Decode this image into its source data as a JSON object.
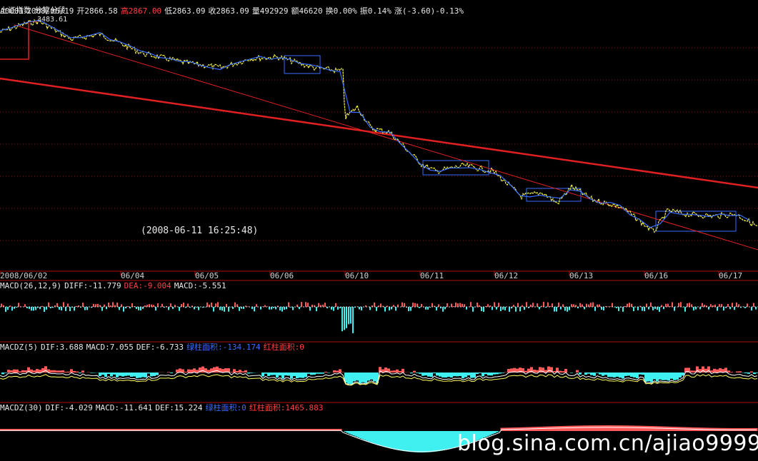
{
  "header": {
    "code": "上证指数",
    "symbol": "A0001",
    "date": "2008/06/19",
    "scale_note": "分笔分段",
    "open": "开2866.58",
    "high": "高2867.00",
    "low": "低2863.09",
    "close": "收2863.09",
    "volume": "量492929",
    "amount": "额46620",
    "turnover": "换0.00%",
    "amplitude": "振0.14%",
    "change": "涨(-3.60)-0.13%"
  },
  "main_chart": {
    "peak_label": "3483.61",
    "timestamp": "(2008-06-11 16:25:48)",
    "time_labels": [
      "2008/06/02",
      "06/04",
      "06/05",
      "06/06",
      "06/10",
      "06/11",
      "06/12",
      "06/13",
      "06/16",
      "06/17"
    ]
  },
  "macd": {
    "name": "MACD(26,12,9)",
    "diff": "DIFF:-11.779",
    "dea": "DEA:-9.004",
    "macd": "MACD:-5.551"
  },
  "macdz5": {
    "name": "MACDZ(5)",
    "dif": "DIF:3.688",
    "macd": "MACD:7.055",
    "def": "DEF:-6.733",
    "green_area": "绿柱面积:-134.174",
    "red_area": "红柱面积:0"
  },
  "macdz30": {
    "name": "MACDZ(30)",
    "dif": "DIF:-4.029",
    "macd": "MACD:-11.641",
    "def": "DEF:15.224",
    "green_area": "绿柱面积:0",
    "red_area": "红柱面积:1465.883"
  },
  "watermark": "blog.sina.com.cn/ajiao9999",
  "colors": {
    "background": "#000000",
    "price_line": "#ffff40",
    "stroke_line": "#3a6cff",
    "trend_line": "#e02020",
    "pane_border": "#b01010",
    "up_bar": "#ff5a5a",
    "down_bar": "#40f0f0"
  }
}
